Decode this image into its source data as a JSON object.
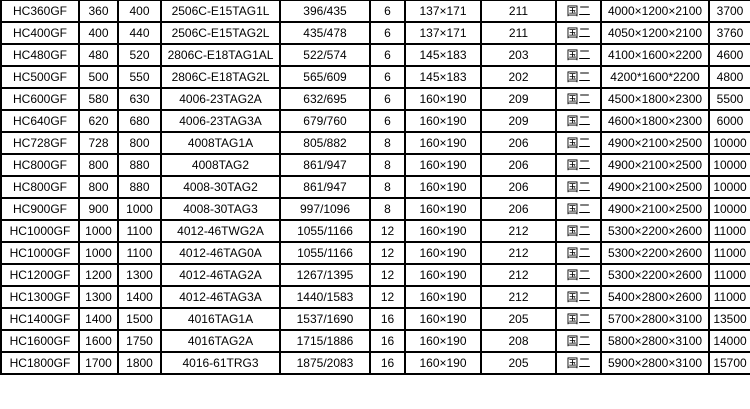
{
  "table": {
    "rows": [
      [
        "HC360GF",
        "360",
        "400",
        "2506C-E15TAG1L",
        "396/435",
        "6",
        "137×171",
        "211",
        "国二",
        "4000×1200×2100",
        "3700"
      ],
      [
        "HC400GF",
        "400",
        "440",
        "2506C-E15TAG2L",
        "435/478",
        "6",
        "137×171",
        "211",
        "国二",
        "4050×1200×2100",
        "3760"
      ],
      [
        "HC480GF",
        "480",
        "520",
        "2806C-E18TAG1AL",
        "522/574",
        "6",
        "145×183",
        "203",
        "国二",
        "4100×1600×2200",
        "4600"
      ],
      [
        "HC500GF",
        "500",
        "550",
        "2806C-E18TAG2L",
        "565/609",
        "6",
        "145×183",
        "202",
        "国二",
        "4200*1600*2200",
        "4800"
      ],
      [
        "HC600GF",
        "580",
        "630",
        "4006-23TAG2A",
        "632/695",
        "6",
        "160×190",
        "209",
        "国二",
        "4500×1800×2300",
        "5500"
      ],
      [
        "HC640GF",
        "620",
        "680",
        "4006-23TAG3A",
        "679/760",
        "6",
        "160×190",
        "209",
        "国二",
        "4600×1800×2300",
        "6000"
      ],
      [
        "HC728GF",
        "728",
        "800",
        "4008TAG1A",
        "805/882",
        "8",
        "160×190",
        "206",
        "国二",
        "4900×2100×2500",
        "10000"
      ],
      [
        "HC800GF",
        "800",
        "880",
        "4008TAG2",
        "861/947",
        "8",
        "160×190",
        "206",
        "国二",
        "4900×2100×2500",
        "10000"
      ],
      [
        "HC800GF",
        "800",
        "880",
        "4008-30TAG2",
        "861/947",
        "8",
        "160×190",
        "206",
        "国二",
        "4900×2100×2500",
        "10000"
      ],
      [
        "HC900GF",
        "900",
        "1000",
        "4008-30TAG3",
        "997/1096",
        "8",
        "160×190",
        "206",
        "国二",
        "4900×2100×2500",
        "10000"
      ],
      [
        "HC1000GF",
        "1000",
        "1100",
        "4012-46TWG2A",
        "1055/1166",
        "12",
        "160×190",
        "212",
        "国二",
        "5300×2200×2600",
        "11000"
      ],
      [
        "HC1000GF",
        "1000",
        "1100",
        "4012-46TAG0A",
        "1055/1166",
        "12",
        "160×190",
        "212",
        "国二",
        "5300×2200×2600",
        "11000"
      ],
      [
        "HC1200GF",
        "1200",
        "1300",
        "4012-46TAG2A",
        "1267/1395",
        "12",
        "160×190",
        "212",
        "国二",
        "5300×2200×2600",
        "11000"
      ],
      [
        "HC1300GF",
        "1300",
        "1400",
        "4012-46TAG3A",
        "1440/1583",
        "12",
        "160×190",
        "212",
        "国二",
        "5400×2800×2600",
        "11000"
      ],
      [
        "HC1400GF",
        "1400",
        "1500",
        "4016TAG1A",
        "1537/1690",
        "16",
        "160×190",
        "205",
        "国二",
        "5700×2800×3100",
        "13500"
      ],
      [
        "HC1600GF",
        "1600",
        "1750",
        "4016TAG2A",
        "1715/1886",
        "16",
        "160×190",
        "208",
        "国二",
        "5800×2800×3100",
        "14000"
      ],
      [
        "HC1800GF",
        "1700",
        "1800",
        "4016-61TRG3",
        "1875/2083",
        "16",
        "160×190",
        "205",
        "国二",
        "5900×2800×3100",
        "15700"
      ]
    ]
  }
}
